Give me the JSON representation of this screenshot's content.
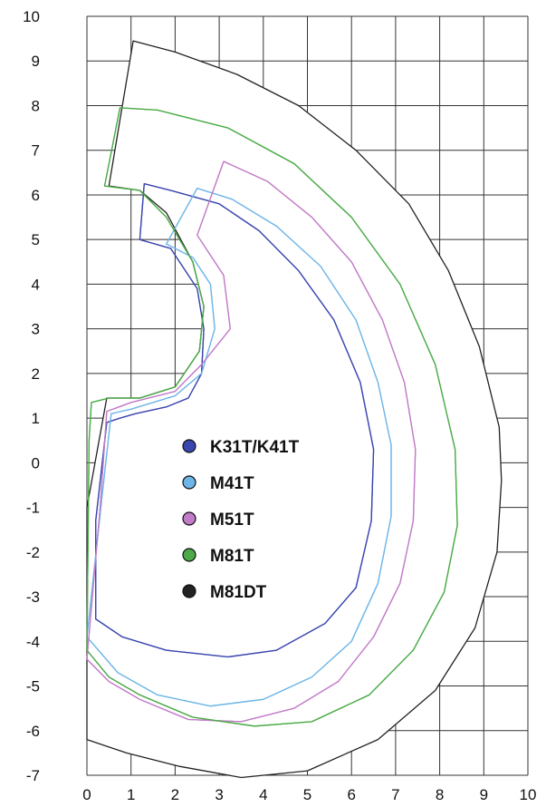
{
  "chart_data": {
    "type": "line",
    "title": "",
    "xlabel": "",
    "ylabel": "",
    "xlim": [
      0,
      10
    ],
    "ylim": [
      -7,
      10
    ],
    "x_ticks": [
      0,
      1,
      2,
      3,
      4,
      5,
      6,
      7,
      8,
      9,
      10
    ],
    "y_ticks": [
      10,
      9,
      8,
      7,
      6,
      5,
      4,
      3,
      2,
      1,
      0,
      -1,
      -2,
      -3,
      -4,
      -5,
      -6,
      -7
    ],
    "grid": true,
    "legend_position": "center",
    "series": [
      {
        "name": "K31T/K41T",
        "color": "#3a46b0",
        "points": [
          [
            0.2,
            -3.5
          ],
          [
            0.2,
            -1.3
          ],
          [
            0.45,
            0.9
          ],
          [
            0.75,
            1.0
          ],
          [
            1.1,
            1.1
          ],
          [
            1.8,
            1.25
          ],
          [
            2.3,
            1.45
          ],
          [
            2.6,
            2.0
          ],
          [
            2.65,
            3.0
          ],
          [
            2.5,
            3.9
          ],
          [
            1.9,
            4.8
          ],
          [
            1.2,
            5.0
          ],
          [
            1.3,
            6.25
          ],
          [
            1.9,
            6.1
          ],
          [
            3.0,
            5.8
          ],
          [
            3.9,
            5.2
          ],
          [
            4.8,
            4.3
          ],
          [
            5.6,
            3.2
          ],
          [
            6.2,
            1.8
          ],
          [
            6.5,
            0.3
          ],
          [
            6.45,
            -1.3
          ],
          [
            6.1,
            -2.8
          ],
          [
            5.4,
            -3.6
          ],
          [
            4.3,
            -4.2
          ],
          [
            3.2,
            -4.35
          ],
          [
            1.8,
            -4.2
          ],
          [
            0.8,
            -3.9
          ],
          [
            0.2,
            -3.5
          ]
        ]
      },
      {
        "name": "M41T",
        "color": "#6fb6e8",
        "points": [
          [
            0.0,
            -3.9
          ],
          [
            0.35,
            -0.7
          ],
          [
            0.55,
            1.1
          ],
          [
            1.0,
            1.2
          ],
          [
            2.0,
            1.5
          ],
          [
            2.6,
            2.0
          ],
          [
            2.9,
            3.0
          ],
          [
            2.8,
            4.0
          ],
          [
            2.4,
            4.6
          ],
          [
            1.8,
            4.9
          ],
          [
            2.5,
            6.15
          ],
          [
            3.3,
            5.9
          ],
          [
            4.3,
            5.3
          ],
          [
            5.3,
            4.4
          ],
          [
            6.1,
            3.2
          ],
          [
            6.6,
            1.8
          ],
          [
            6.9,
            0.4
          ],
          [
            6.9,
            -1.2
          ],
          [
            6.6,
            -2.7
          ],
          [
            6.0,
            -4.0
          ],
          [
            5.1,
            -4.8
          ],
          [
            4.0,
            -5.3
          ],
          [
            2.8,
            -5.45
          ],
          [
            1.6,
            -5.2
          ],
          [
            0.7,
            -4.7
          ],
          [
            0.0,
            -3.9
          ]
        ]
      },
      {
        "name": "M51T",
        "color": "#c27bc8",
        "points": [
          [
            0.0,
            -4.4
          ],
          [
            0.3,
            -1.0
          ],
          [
            0.45,
            1.15
          ],
          [
            1.0,
            1.35
          ],
          [
            2.0,
            1.6
          ],
          [
            2.6,
            2.2
          ],
          [
            3.25,
            3.0
          ],
          [
            3.1,
            4.2
          ],
          [
            2.5,
            5.1
          ],
          [
            3.1,
            6.75
          ],
          [
            4.1,
            6.3
          ],
          [
            5.1,
            5.5
          ],
          [
            6.0,
            4.5
          ],
          [
            6.7,
            3.2
          ],
          [
            7.2,
            1.8
          ],
          [
            7.45,
            0.3
          ],
          [
            7.4,
            -1.3
          ],
          [
            7.1,
            -2.7
          ],
          [
            6.5,
            -3.9
          ],
          [
            5.7,
            -4.9
          ],
          [
            4.7,
            -5.5
          ],
          [
            3.5,
            -5.8
          ],
          [
            2.3,
            -5.75
          ],
          [
            1.2,
            -5.3
          ],
          [
            0.5,
            -4.9
          ],
          [
            0.0,
            -4.4
          ]
        ]
      },
      {
        "name": "M81T",
        "color": "#4cab48",
        "points": [
          [
            0.0,
            -4.2
          ],
          [
            0.05,
            0.5
          ],
          [
            0.1,
            1.35
          ],
          [
            0.5,
            1.45
          ],
          [
            1.2,
            1.45
          ],
          [
            2.0,
            1.7
          ],
          [
            2.55,
            2.5
          ],
          [
            2.65,
            3.5
          ],
          [
            2.4,
            4.5
          ],
          [
            1.8,
            5.5
          ],
          [
            1.2,
            6.1
          ],
          [
            0.4,
            6.2
          ],
          [
            0.75,
            7.95
          ],
          [
            1.6,
            7.9
          ],
          [
            3.2,
            7.5
          ],
          [
            4.7,
            6.7
          ],
          [
            6.0,
            5.5
          ],
          [
            7.1,
            4.0
          ],
          [
            7.9,
            2.2
          ],
          [
            8.35,
            0.3
          ],
          [
            8.4,
            -1.4
          ],
          [
            8.1,
            -2.9
          ],
          [
            7.4,
            -4.2
          ],
          [
            6.4,
            -5.2
          ],
          [
            5.1,
            -5.8
          ],
          [
            3.8,
            -5.9
          ],
          [
            2.4,
            -5.7
          ],
          [
            1.2,
            -5.2
          ],
          [
            0.5,
            -4.8
          ],
          [
            0.0,
            -4.2
          ]
        ]
      },
      {
        "name": "M81DT",
        "color": "#222222",
        "points": [
          [
            0.0,
            -6.2
          ],
          [
            0.0,
            -1.0
          ],
          [
            0.45,
            1.45
          ],
          [
            1.2,
            1.45
          ],
          [
            2.0,
            1.7
          ],
          [
            2.55,
            2.5
          ],
          [
            2.65,
            3.5
          ],
          [
            2.4,
            4.5
          ],
          [
            1.8,
            5.6
          ],
          [
            1.2,
            6.1
          ],
          [
            0.5,
            6.2
          ],
          [
            1.05,
            9.45
          ],
          [
            2.0,
            9.2
          ],
          [
            3.4,
            8.7
          ],
          [
            4.8,
            8.0
          ],
          [
            6.1,
            7.0
          ],
          [
            7.3,
            5.8
          ],
          [
            8.2,
            4.3
          ],
          [
            8.9,
            2.6
          ],
          [
            9.35,
            0.8
          ],
          [
            9.4,
            -0.4
          ],
          [
            9.3,
            -2.0
          ],
          [
            8.8,
            -3.7
          ],
          [
            7.9,
            -5.1
          ],
          [
            6.6,
            -6.2
          ],
          [
            5.0,
            -6.9
          ],
          [
            3.5,
            -7.05
          ],
          [
            2.1,
            -6.8
          ],
          [
            0.9,
            -6.5
          ],
          [
            0.0,
            -6.2
          ]
        ]
      }
    ]
  }
}
